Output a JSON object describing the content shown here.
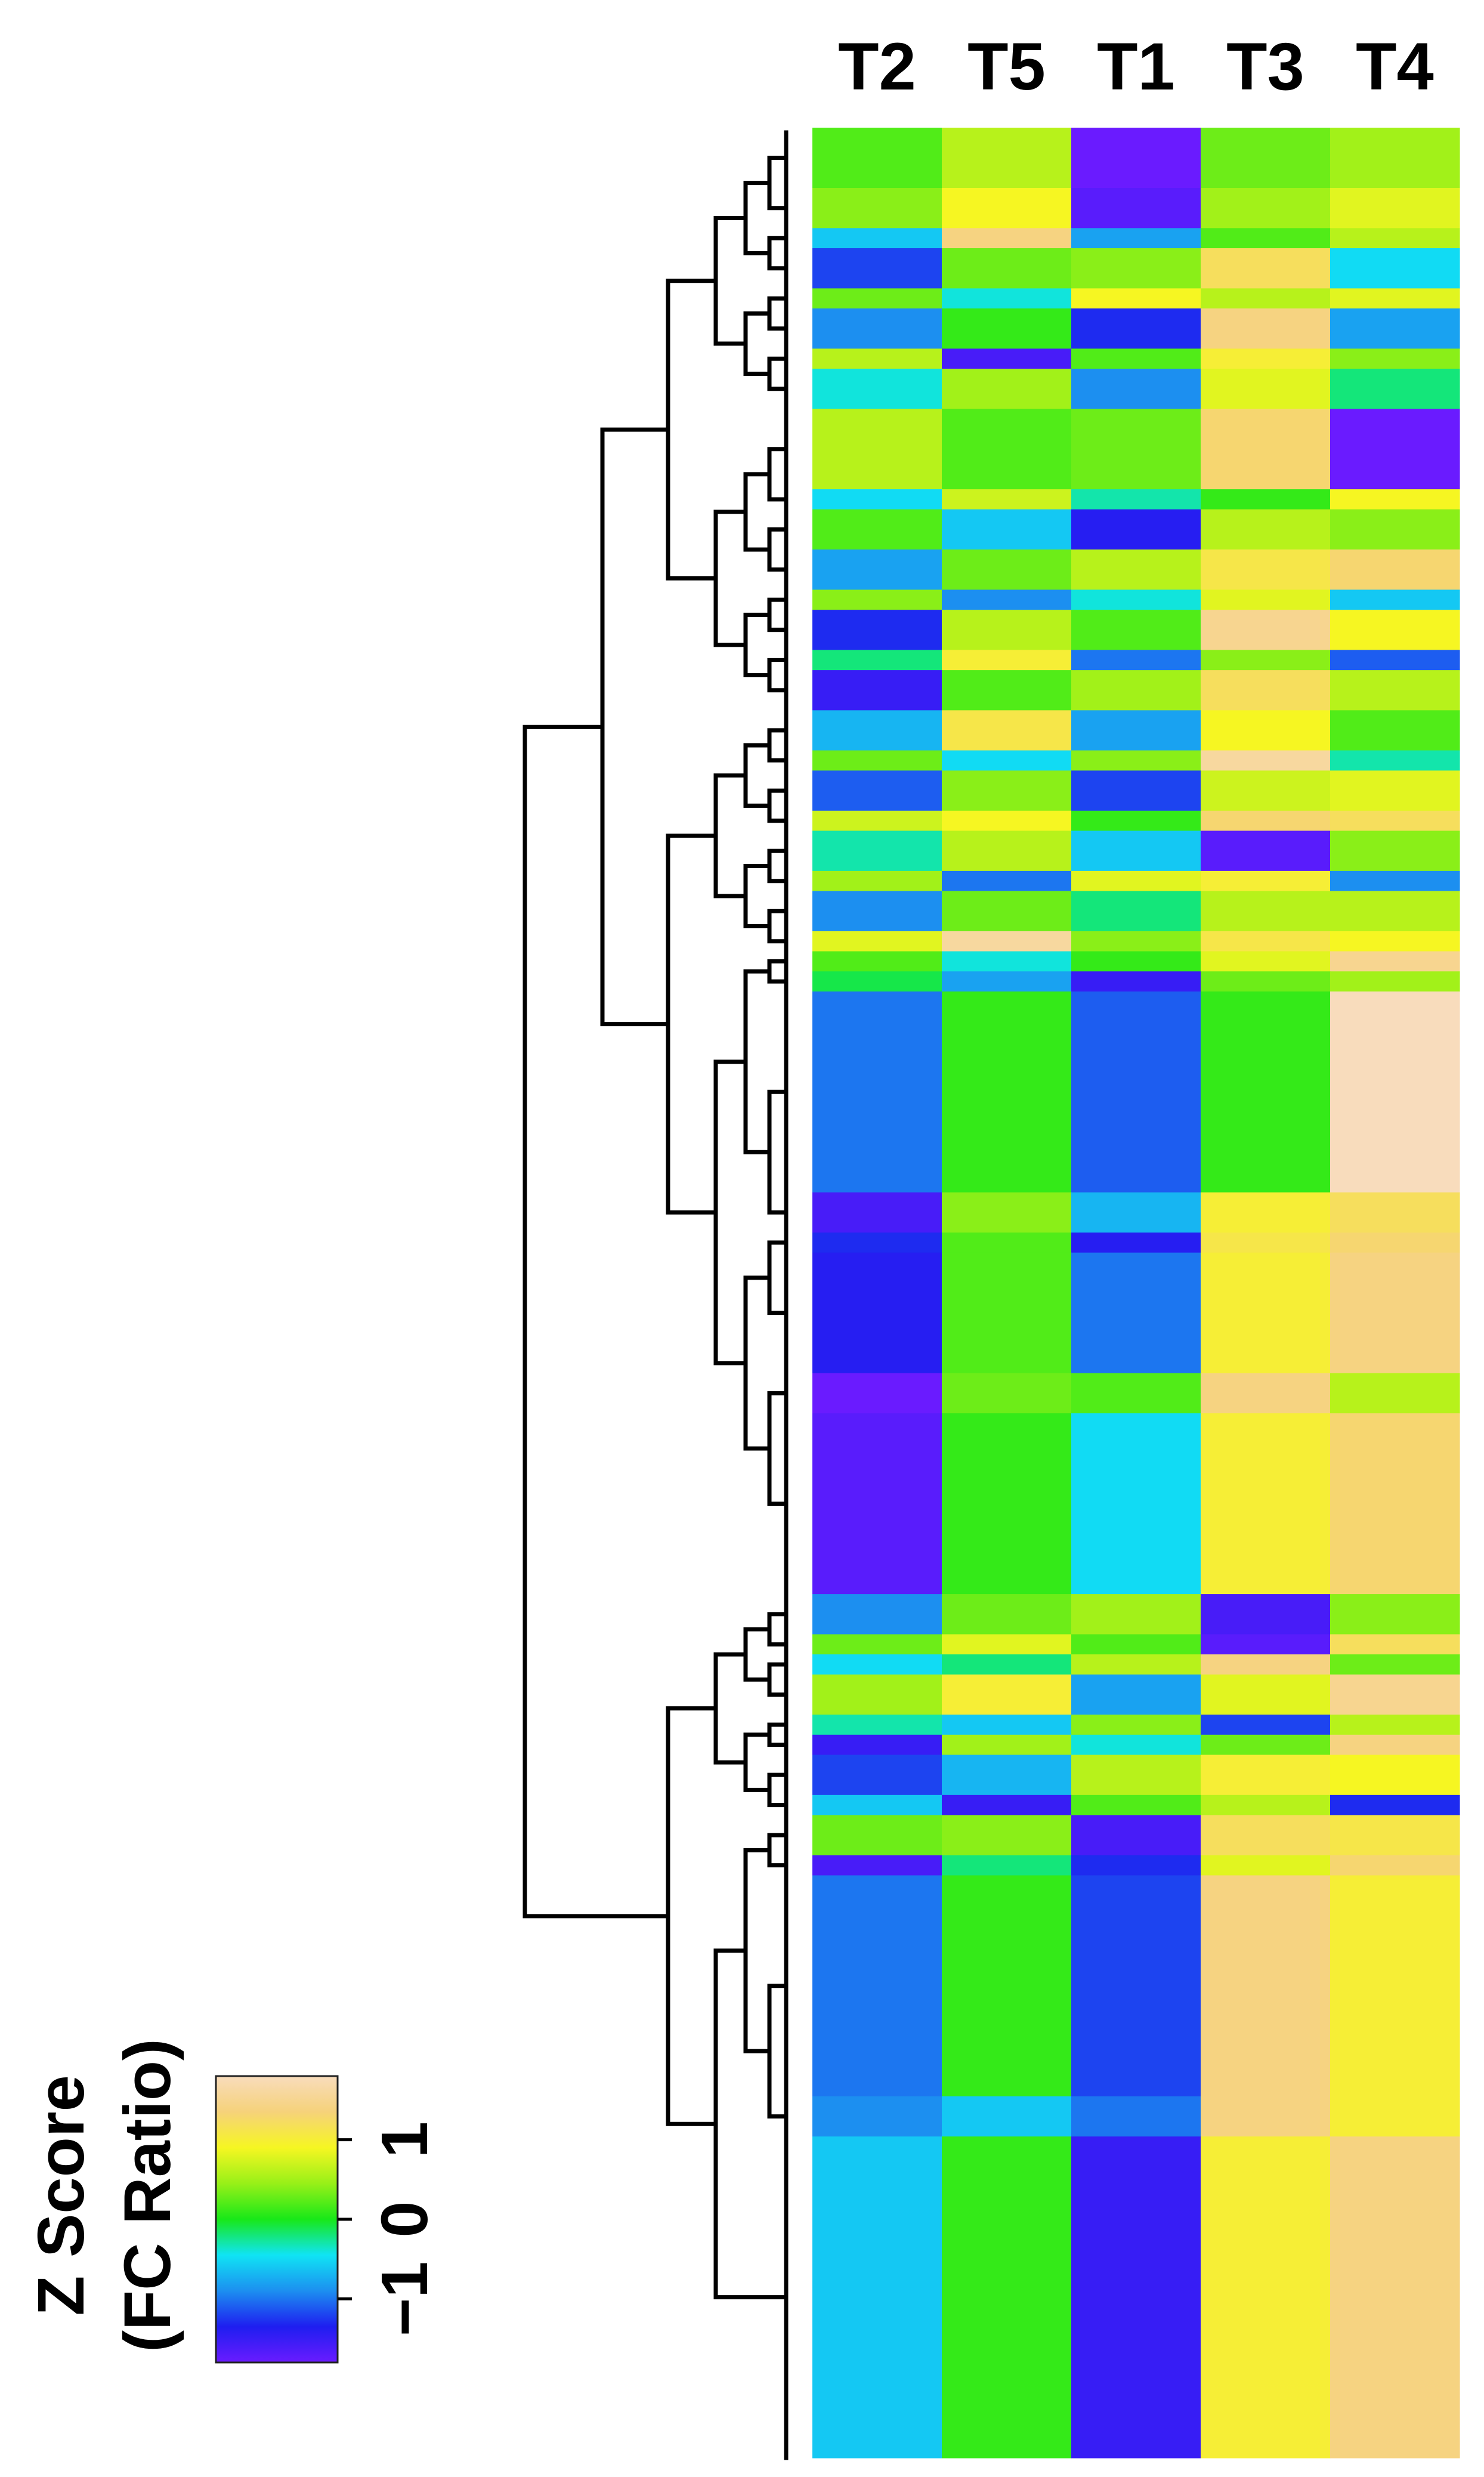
{
  "chart_data": {
    "type": "heatmap",
    "title": "",
    "columns": [
      "T2",
      "T5",
      "T1",
      "T3",
      "T4"
    ],
    "value_range": [
      -1.8,
      1.8
    ],
    "colorbar": {
      "title_line1": "Z Score",
      "title_line2": "(FC Ratio)",
      "ticks": [
        -1,
        0,
        1
      ],
      "tick_labels": [
        "−1",
        "0",
        "1"
      ],
      "colors": [
        "#6a1bff",
        "#1e1ef0",
        "#1c8ff0",
        "#10e4f4",
        "#18e818",
        "#98f018",
        "#f6f622",
        "#f6d27a",
        "#f8dcbc"
      ]
    },
    "dendrogram": "left",
    "row_blocks": [
      {
        "weight": 3,
        "values": [
          0.2,
          0.6,
          -1.8,
          0.3,
          0.5
        ]
      },
      {
        "weight": 2,
        "values": [
          0.4,
          0.9,
          -1.7,
          0.5,
          0.8
        ]
      },
      {
        "weight": 1,
        "values": [
          -0.6,
          1.4,
          -0.8,
          0.2,
          0.6
        ]
      },
      {
        "weight": 2,
        "values": [
          -1.2,
          0.3,
          0.4,
          1.2,
          -0.5
        ]
      },
      {
        "weight": 1,
        "values": [
          0.3,
          -0.4,
          0.9,
          0.6,
          0.8
        ]
      },
      {
        "weight": 2,
        "values": [
          -0.9,
          0.1,
          -1.3,
          1.4,
          -0.8
        ]
      },
      {
        "weight": 1,
        "values": [
          0.6,
          -1.6,
          0.2,
          1.0,
          0.4
        ]
      },
      {
        "weight": 2,
        "values": [
          -0.4,
          0.5,
          -0.9,
          0.8,
          -0.2
        ]
      },
      {
        "weight": 4,
        "values": [
          0.6,
          0.2,
          0.3,
          1.3,
          -1.8
        ]
      },
      {
        "weight": 1,
        "values": [
          -0.5,
          0.7,
          -0.3,
          0.1,
          0.9
        ]
      },
      {
        "weight": 2,
        "values": [
          0.2,
          -0.6,
          -1.4,
          0.6,
          0.4
        ]
      },
      {
        "weight": 2,
        "values": [
          -0.8,
          0.3,
          0.6,
          1.1,
          1.3
        ]
      },
      {
        "weight": 1,
        "values": [
          0.4,
          -0.9,
          -0.4,
          0.8,
          -0.6
        ]
      },
      {
        "weight": 2,
        "values": [
          -1.3,
          0.6,
          0.2,
          1.5,
          0.9
        ]
      },
      {
        "weight": 1,
        "values": [
          -0.2,
          1.0,
          -1.0,
          0.4,
          -1.1
        ]
      },
      {
        "weight": 2,
        "values": [
          -1.5,
          0.2,
          0.5,
          1.2,
          0.6
        ]
      },
      {
        "weight": 2,
        "values": [
          -0.7,
          1.1,
          -0.8,
          0.9,
          0.2
        ]
      },
      {
        "weight": 1,
        "values": [
          0.3,
          -0.5,
          0.4,
          1.6,
          -0.3
        ]
      },
      {
        "weight": 2,
        "values": [
          -1.1,
          0.4,
          -1.2,
          0.7,
          0.8
        ]
      },
      {
        "weight": 1,
        "values": [
          0.7,
          0.9,
          0.1,
          1.3,
          1.2
        ]
      },
      {
        "weight": 2,
        "values": [
          -0.3,
          0.6,
          -0.6,
          -1.7,
          0.4
        ]
      },
      {
        "weight": 1,
        "values": [
          0.5,
          -1.0,
          0.8,
          1.0,
          -0.9
        ]
      },
      {
        "weight": 2,
        "values": [
          -0.9,
          0.3,
          -0.2,
          0.6,
          0.6
        ]
      },
      {
        "weight": 1,
        "values": [
          0.8,
          1.6,
          0.4,
          1.1,
          0.9
        ]
      },
      {
        "weight": 1,
        "values": [
          0.2,
          -0.4,
          0.1,
          0.8,
          1.5
        ]
      },
      {
        "weight": 1,
        "values": [
          -0.1,
          -0.8,
          -1.5,
          0.3,
          0.5
        ]
      },
      {
        "weight": 10,
        "values": [
          -1.0,
          0.1,
          -1.1,
          0.1,
          1.8
        ]
      },
      {
        "weight": 2,
        "values": [
          -1.6,
          0.4,
          -0.7,
          1.0,
          1.2
        ]
      },
      {
        "weight": 1,
        "values": [
          -1.3,
          0.2,
          -1.4,
          1.1,
          1.3
        ]
      },
      {
        "weight": 6,
        "values": [
          -1.4,
          0.2,
          -1.0,
          1.0,
          1.4
        ]
      },
      {
        "weight": 2,
        "values": [
          -1.8,
          0.3,
          0.2,
          1.4,
          0.6
        ]
      },
      {
        "weight": 9,
        "values": [
          -1.7,
          0.1,
          -0.5,
          1.0,
          1.3
        ]
      },
      {
        "weight": 2,
        "values": [
          -0.9,
          0.3,
          0.5,
          -1.6,
          0.4
        ]
      },
      {
        "weight": 1,
        "values": [
          0.3,
          0.8,
          0.2,
          -1.7,
          1.2
        ]
      },
      {
        "weight": 1,
        "values": [
          -0.5,
          -0.2,
          0.6,
          1.4,
          0.3
        ]
      },
      {
        "weight": 2,
        "values": [
          0.5,
          1.0,
          -0.8,
          0.8,
          1.5
        ]
      },
      {
        "weight": 1,
        "values": [
          -0.3,
          -0.6,
          0.4,
          -1.2,
          0.6
        ]
      },
      {
        "weight": 1,
        "values": [
          -1.5,
          0.5,
          -0.4,
          0.3,
          1.4
        ]
      },
      {
        "weight": 2,
        "values": [
          -1.2,
          -0.7,
          0.6,
          1.0,
          0.9
        ]
      },
      {
        "weight": 1,
        "values": [
          -0.6,
          -1.5,
          0.2,
          0.6,
          -1.3
        ]
      },
      {
        "weight": 2,
        "values": [
          0.3,
          0.4,
          -1.6,
          1.2,
          1.1
        ]
      },
      {
        "weight": 1,
        "values": [
          -1.6,
          -0.2,
          -1.3,
          0.8,
          1.3
        ]
      },
      {
        "weight": 11,
        "values": [
          -1.0,
          0.1,
          -1.2,
          1.4,
          1.0
        ]
      },
      {
        "weight": 2,
        "values": [
          -0.9,
          -0.6,
          -1.0,
          1.4,
          1.0
        ]
      },
      {
        "weight": 16,
        "values": [
          -0.6,
          0.1,
          -1.5,
          1.0,
          1.4
        ]
      }
    ]
  }
}
